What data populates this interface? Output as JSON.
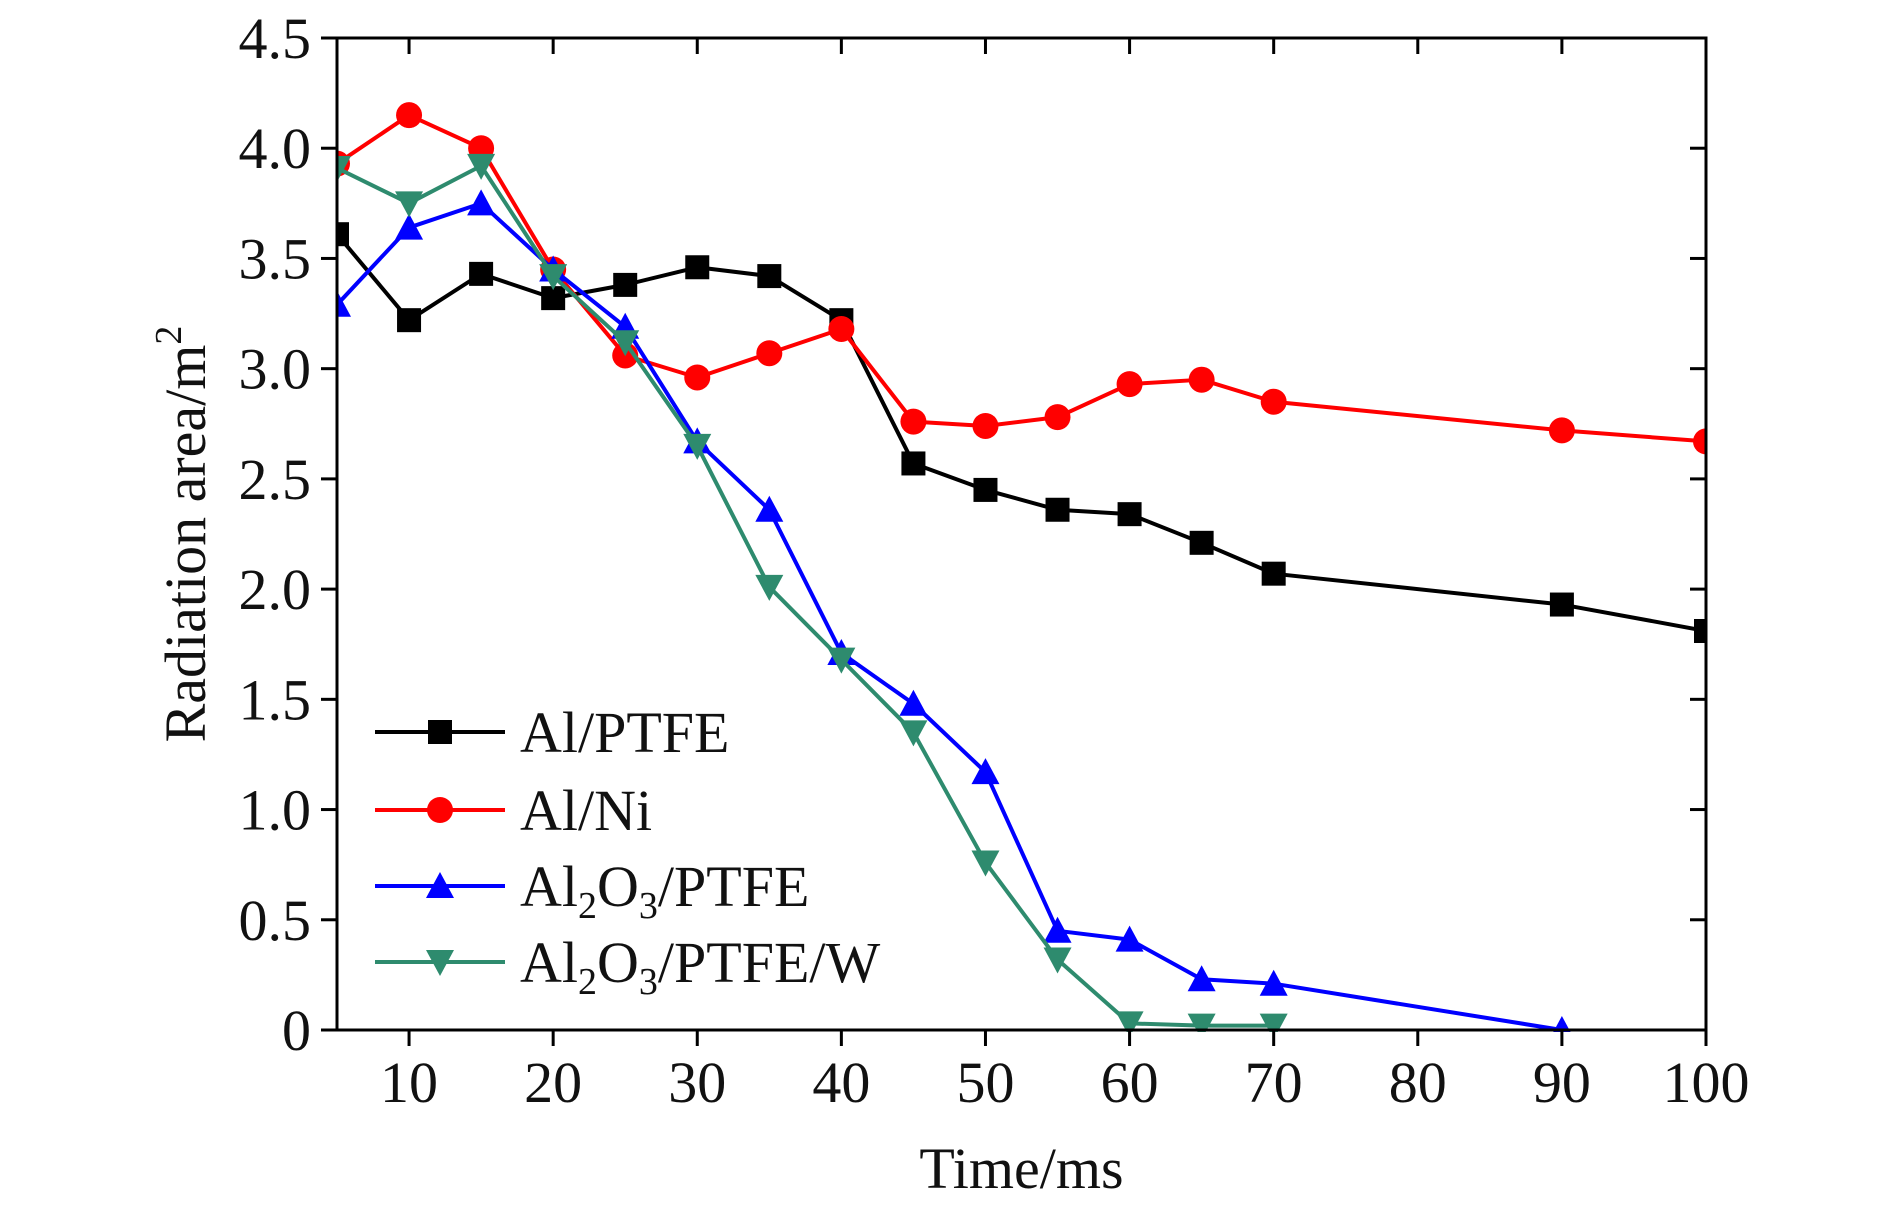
{
  "chart_data": {
    "type": "line",
    "title": "",
    "xlabel": "Time/ms",
    "ylabel": "Radiation area/m",
    "ylabel_superscript": "2",
    "xlim": [
      5,
      100
    ],
    "ylim": [
      0,
      4.5
    ],
    "x_ticks": [
      10,
      20,
      30,
      40,
      50,
      60,
      70,
      80,
      90,
      100
    ],
    "x_tick_labels": [
      "10",
      "20",
      "30",
      "40",
      "50",
      "60",
      "70",
      "80",
      "90",
      "100"
    ],
    "y_ticks": [
      0,
      0.5,
      1.0,
      1.5,
      2.0,
      2.5,
      3.0,
      3.5,
      4.0,
      4.5
    ],
    "y_tick_labels": [
      "0",
      "0.5",
      "1.0",
      "1.5",
      "2.0",
      "2.5",
      "3.0",
      "3.5",
      "4.0",
      "4.5"
    ],
    "grid": false,
    "legend_position": "bottom-left",
    "series": [
      {
        "name": "Al/PTFE",
        "legend_parts": [
          {
            "t": "Al/PTFE",
            "sub": false
          }
        ],
        "color": "#000000",
        "marker": "square",
        "x": [
          5,
          10,
          15,
          20,
          25,
          30,
          35,
          40,
          45,
          50,
          55,
          60,
          65,
          70,
          90,
          100
        ],
        "y": [
          3.61,
          3.22,
          3.43,
          3.32,
          3.38,
          3.46,
          3.42,
          3.22,
          2.57,
          2.45,
          2.36,
          2.34,
          2.21,
          2.07,
          1.93,
          1.81
        ]
      },
      {
        "name": "Al/Ni",
        "legend_parts": [
          {
            "t": "Al/Ni",
            "sub": false
          }
        ],
        "color": "#ff0000",
        "marker": "circle",
        "x": [
          5,
          10,
          15,
          20,
          25,
          30,
          35,
          40,
          45,
          50,
          55,
          60,
          65,
          70,
          90,
          100
        ],
        "y": [
          3.93,
          4.15,
          4.0,
          3.45,
          3.06,
          2.96,
          3.07,
          3.18,
          2.76,
          2.74,
          2.78,
          2.93,
          2.95,
          2.85,
          2.72,
          2.67
        ]
      },
      {
        "name": "Al2O3/PTFE",
        "legend_parts": [
          {
            "t": "Al",
            "sub": false
          },
          {
            "t": "2",
            "sub": true
          },
          {
            "t": "O",
            "sub": false
          },
          {
            "t": "3",
            "sub": true
          },
          {
            "t": "/PTFE",
            "sub": false
          }
        ],
        "color": "#0000ff",
        "marker": "triangle-up",
        "x": [
          5,
          10,
          15,
          20,
          25,
          30,
          35,
          40,
          45,
          50,
          55,
          60,
          65,
          70,
          90
        ],
        "y": [
          3.29,
          3.64,
          3.75,
          3.45,
          3.19,
          2.67,
          2.36,
          1.71,
          1.48,
          1.17,
          0.45,
          0.41,
          0.23,
          0.21,
          0.0
        ]
      },
      {
        "name": "Al2O3/PTFE/W",
        "legend_parts": [
          {
            "t": "Al",
            "sub": false
          },
          {
            "t": "2",
            "sub": true
          },
          {
            "t": "O",
            "sub": false
          },
          {
            "t": "3",
            "sub": true
          },
          {
            "t": "/PTFE/W",
            "sub": false
          }
        ],
        "color": "#2e8b6e",
        "marker": "triangle-down",
        "x": [
          5,
          10,
          15,
          20,
          25,
          30,
          35,
          40,
          45,
          50,
          55,
          60,
          65,
          70
        ],
        "y": [
          3.91,
          3.75,
          3.92,
          3.42,
          3.12,
          2.65,
          2.01,
          1.68,
          1.35,
          0.76,
          0.32,
          0.03,
          0.02,
          0.02
        ]
      }
    ]
  }
}
